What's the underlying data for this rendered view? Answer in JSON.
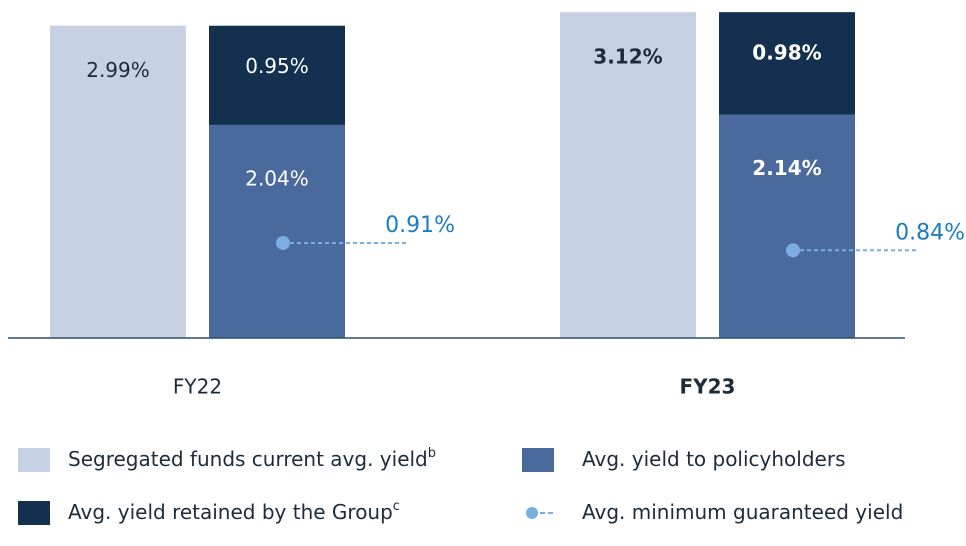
{
  "chart_data": {
    "type": "bar",
    "categories": [
      "FY22",
      "FY23"
    ],
    "ylim": [
      0,
      3.15
    ],
    "series": [
      {
        "name": "Segregated funds current avg. yield",
        "footnote": "b",
        "color": "#c6d2e4",
        "values": [
          2.99,
          3.12
        ],
        "value_labels": [
          "2.99%",
          "3.12%"
        ]
      },
      {
        "name": "Avg. yield to policyholders",
        "color": "#4a6a9d",
        "stack": "s",
        "values": [
          2.04,
          2.14
        ],
        "value_labels": [
          "2.04%",
          "2.14%"
        ]
      },
      {
        "name": "Avg. yield retained by the Group",
        "footnote": "c",
        "color": "#13304f",
        "stack": "s",
        "values": [
          0.95,
          0.98
        ],
        "value_labels": [
          "0.95%",
          "0.98%"
        ]
      },
      {
        "name": "Avg. minimum guaranteed yield",
        "type": "dot-line",
        "color": "#7aaee0",
        "label_color": "#1a7dc4",
        "values": [
          0.91,
          0.84
        ],
        "value_labels": [
          "0.91%",
          "0.84%"
        ]
      }
    ]
  }
}
